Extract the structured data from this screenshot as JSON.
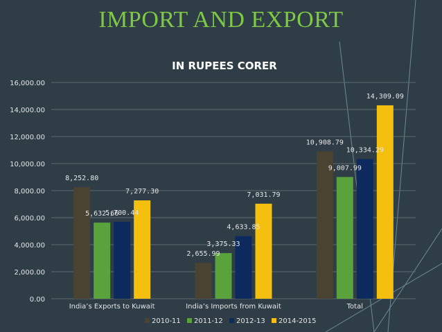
{
  "slide": {
    "title": "IMPORT AND EXPORT"
  },
  "chart_data": {
    "type": "bar",
    "title": "IN RUPEES CORER",
    "categories": [
      "India’s Exports to Kuwait",
      "India’s Imports from Kuwait",
      "Total"
    ],
    "series": [
      {
        "name": "2010-11",
        "color": "#4a4331",
        "values": [
          8252.8,
          2655.99,
          10908.79
        ],
        "labels": [
          "8,252.80",
          "2,655.99",
          "10,908.79"
        ]
      },
      {
        "name": "2011-12",
        "color": "#5aa23c",
        "values": [
          5632.66,
          3375.33,
          9007.99
        ],
        "labels": [
          "5,632.66",
          "3,375.33",
          "9,007.99"
        ]
      },
      {
        "name": "2012-13",
        "color": "#0d2a5e",
        "values": [
          5700.44,
          4633.85,
          10334.29
        ],
        "labels": [
          "5,700.44",
          "4,633.85",
          "10,334.29"
        ]
      },
      {
        "name": "2014-2015",
        "color": "#f5bf0f",
        "values": [
          7277.3,
          7031.79,
          14309.09
        ],
        "labels": [
          "7,277.30",
          "7,031.79",
          "14,309.09"
        ]
      }
    ],
    "ylim": [
      0,
      16000
    ],
    "yticks": [
      0,
      2000,
      4000,
      6000,
      8000,
      10000,
      12000,
      14000,
      16000
    ],
    "ytick_labels": [
      "0.00",
      "2,000.00",
      "4,000.00",
      "6,000.00",
      "8,000.00",
      "10,000.00",
      "12,000.00",
      "14,000.00",
      "16,000.00"
    ],
    "grid": true,
    "legend_position": "bottom"
  }
}
